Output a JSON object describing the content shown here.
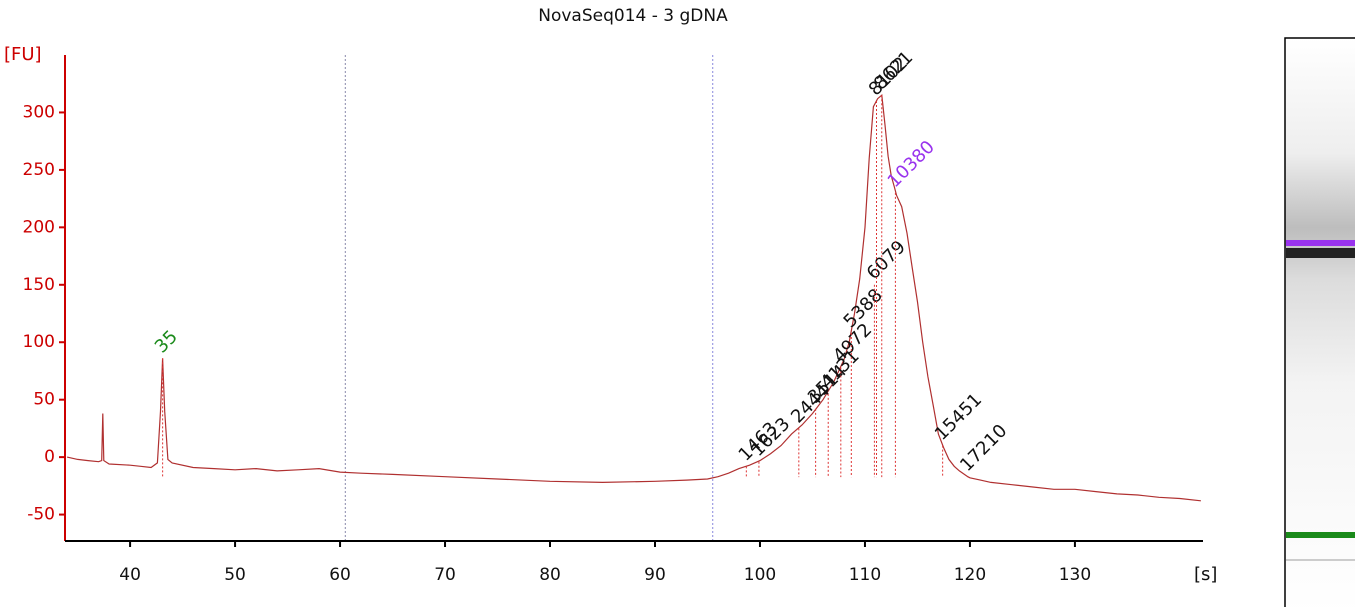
{
  "chart_data": {
    "type": "line",
    "title": "NovaSeq014 - 3 gDNA",
    "ylabel": "[FU]",
    "xlabel": "[s]",
    "xlim": [
      33.8,
      142.2
    ],
    "ylim": [
      -73,
      350
    ],
    "xticks": [
      40,
      50,
      60,
      70,
      80,
      90,
      100,
      110,
      120,
      130
    ],
    "yticks": [
      -50,
      0,
      50,
      100,
      150,
      200,
      250,
      300
    ],
    "axis_color": "#cc0000",
    "vlines": [
      {
        "x": 60.5,
        "color": "#8888aa"
      },
      {
        "x": 95.5,
        "color": "#8888dd"
      }
    ],
    "x": [
      34,
      35,
      36,
      37,
      37.3,
      37.4,
      37.5,
      38,
      40,
      41,
      42,
      42.6,
      42.9,
      43.1,
      43.3,
      43.6,
      44,
      46,
      48,
      50,
      52,
      54,
      56,
      58,
      60,
      62,
      65,
      70,
      75,
      80,
      85,
      90,
      93,
      95,
      96,
      97,
      98,
      99,
      100,
      101,
      102,
      103,
      104,
      105,
      106,
      107,
      108,
      108.5,
      109,
      109.5,
      110,
      110.4,
      110.8,
      111.2,
      111.6,
      111.9,
      112.2,
      112.5,
      112.8,
      113,
      113.5,
      114,
      114.5,
      115,
      115.5,
      116,
      116.5,
      117,
      117.5,
      118,
      118.5,
      119,
      119.8,
      120,
      121,
      122,
      124,
      126,
      128,
      130,
      132,
      134,
      136,
      138,
      140,
      142
    ],
    "series": [
      {
        "color": "#b03030",
        "values": [
          0,
          -2,
          -3,
          -4,
          -3,
          38,
          -3,
          -6,
          -7,
          -8,
          -9,
          -5,
          40,
          86,
          40,
          -2,
          -5,
          -9,
          -10,
          -11,
          -10,
          -12,
          -11,
          -10,
          -13,
          -14,
          -15,
          -17,
          -19,
          -21,
          -22,
          -21,
          -20,
          -19,
          -17,
          -14,
          -10,
          -7,
          -3,
          3,
          10,
          20,
          28,
          38,
          50,
          65,
          85,
          100,
          125,
          155,
          200,
          260,
          305,
          312,
          315,
          290,
          262,
          245,
          235,
          228,
          218,
          195,
          165,
          135,
          100,
          70,
          45,
          20,
          8,
          -2,
          -8,
          -12,
          -17,
          -18,
          -20,
          -22,
          -24,
          -26,
          -28,
          -28,
          -30,
          -32,
          -33,
          -35,
          -36,
          -38
        ]
      }
    ],
    "peaks": [
      {
        "size": 35,
        "x": 43.1,
        "y": 86,
        "color": "#1a8a1a"
      },
      {
        "size": 1463,
        "x": 98.7,
        "y": -8,
        "color": "#111111"
      },
      {
        "size": 1623,
        "x": 99.9,
        "y": -4,
        "color": "#111111"
      },
      {
        "size": 2444,
        "x": 103.7,
        "y": 25,
        "color": "#111111"
      },
      {
        "size": 3514,
        "x": 105.3,
        "y": 42,
        "color": "#111111"
      },
      {
        "size": 4131,
        "x": 106.5,
        "y": 55,
        "color": "#111111"
      },
      {
        "size": 4972,
        "x": 107.7,
        "y": 78,
        "color": "#111111"
      },
      {
        "size": 5388,
        "x": 108.7,
        "y": 108,
        "color": "#111111"
      },
      {
        "size": 6079,
        "x": 110.9,
        "y": 150,
        "color": "#111111"
      },
      {
        "size": 8102,
        "x": 111.1,
        "y": 310,
        "color": "#111111"
      },
      {
        "size": 8621,
        "x": 111.6,
        "y": 315,
        "color": "#111111"
      },
      {
        "size": 10380,
        "x": 112.9,
        "y": 230,
        "color": "#9933ee"
      },
      {
        "size": 15451,
        "x": 117.4,
        "y": 10,
        "color": "#111111"
      },
      {
        "size": 17210,
        "x": 119.8,
        "y": -17,
        "color": "#111111"
      }
    ]
  }
}
